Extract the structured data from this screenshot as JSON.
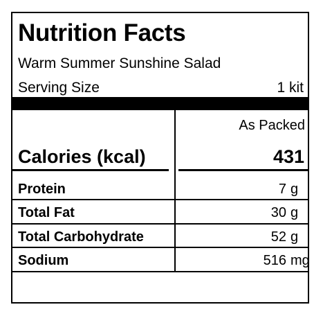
{
  "label": {
    "title": "Nutrition Facts",
    "product_name": "Warm Summer Sunshine Salad",
    "serving_size_label": "Serving Size",
    "serving_size_value": "1 kit",
    "column_header": "As Packed",
    "calories_label": "Calories (kcal)",
    "calories_value": "431",
    "nutrients": [
      {
        "name": "Protein",
        "value": "7",
        "unit": "g"
      },
      {
        "name": "Total Fat",
        "value": "30",
        "unit": "g"
      },
      {
        "name": "Total Carbohydrate",
        "value": "52",
        "unit": "g"
      },
      {
        "name": "Sodium",
        "value": "516",
        "unit": "mg"
      }
    ]
  }
}
